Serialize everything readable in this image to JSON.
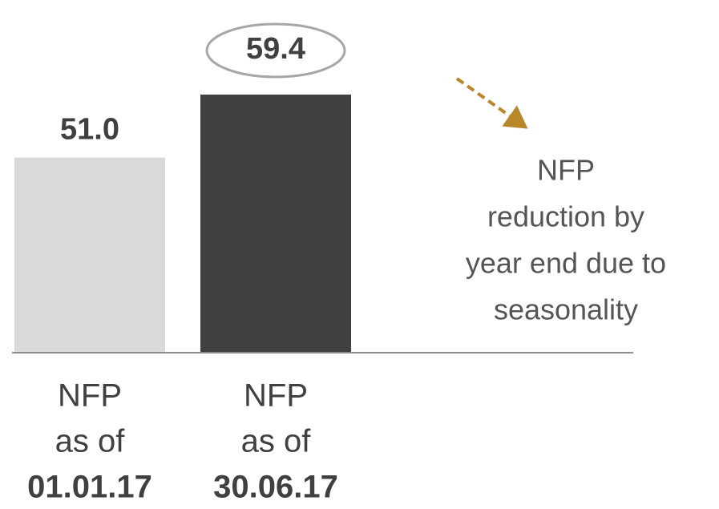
{
  "chart_data": {
    "type": "bar",
    "categories": [
      [
        "NFP",
        "as of",
        "01.01.17"
      ],
      [
        "NFP",
        "as of",
        "30.06.17"
      ]
    ],
    "values": [
      51.0,
      59.4
    ],
    "value_labels": [
      "51.0",
      "59.4"
    ],
    "colors": [
      "#d9d9d9",
      "#404040"
    ],
    "ylim": [
      25,
      60
    ],
    "annotation": [
      "NFP",
      "reduction by",
      "year end due to",
      "seasonality"
    ]
  }
}
